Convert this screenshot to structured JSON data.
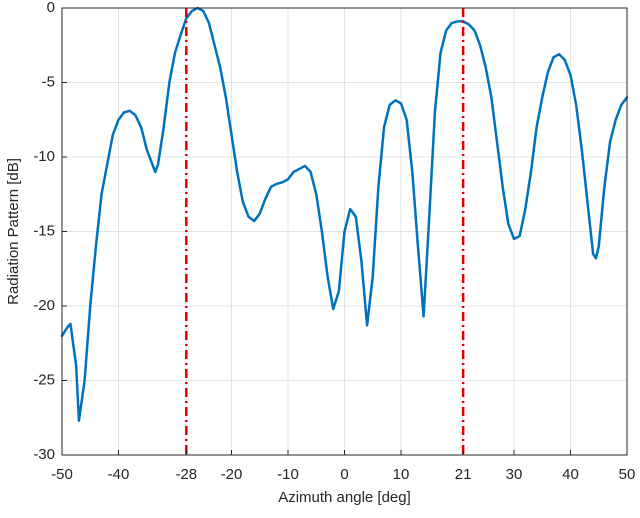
{
  "chart_data": {
    "type": "line",
    "xlabel": "Azimuth angle [deg]",
    "ylabel": "Radiation Pattern [dB]",
    "x": [
      -50,
      -49,
      -48.5,
      -47.5,
      -47,
      -46,
      -45,
      -44,
      -43,
      -42,
      -41,
      -40,
      -39,
      -38,
      -37,
      -36,
      -35,
      -34,
      -33.5,
      -33,
      -32,
      -31,
      -30,
      -29,
      -28,
      -27,
      -26,
      -25,
      -24,
      -23,
      -22,
      -21,
      -20,
      -19,
      -18,
      -17,
      -16,
      -15,
      -14,
      -13,
      -12,
      -11,
      -10,
      -9,
      -8,
      -7,
      -6,
      -5,
      -4,
      -3,
      -2,
      -1,
      0,
      1,
      2,
      3,
      4,
      5,
      6,
      7,
      8,
      9,
      10,
      11,
      12,
      13,
      14,
      15,
      16,
      17,
      18,
      19,
      20,
      21,
      22,
      23,
      24,
      25,
      26,
      27,
      28,
      29,
      30,
      31,
      32,
      33,
      34,
      35,
      36,
      37,
      38,
      39,
      40,
      41,
      42,
      43,
      44,
      44.5,
      45,
      46,
      47,
      48,
      49,
      50
    ],
    "series": [
      {
        "color": "#0072bd",
        "values": [
          -22,
          -21.4,
          -21.2,
          -24,
          -27.7,
          -25,
          -20,
          -16,
          -12.5,
          -10.5,
          -8.5,
          -7.5,
          -7,
          -6.9,
          -7.2,
          -8,
          -9.5,
          -10.5,
          -11,
          -10.5,
          -8,
          -5,
          -3,
          -1.8,
          -0.7,
          -0.2,
          0,
          -0.2,
          -1,
          -2.5,
          -4,
          -6,
          -8.5,
          -11,
          -13,
          -14,
          -14.3,
          -13.8,
          -12.8,
          -12,
          -11.8,
          -11.7,
          -11.5,
          -11,
          -10.8,
          -10.6,
          -11,
          -12.5,
          -15,
          -18,
          -20.2,
          -19,
          -15,
          -13.5,
          -14,
          -17,
          -21.3,
          -18,
          -12,
          -8,
          -6.5,
          -6.2,
          -6.4,
          -7.5,
          -11,
          -16,
          -20.7,
          -14,
          -7,
          -3,
          -1.5,
          -1,
          -0.9,
          -0.9,
          -1.1,
          -1.5,
          -2.5,
          -4,
          -6,
          -9,
          -12,
          -14.5,
          -15.5,
          -15.3,
          -13.5,
          -11,
          -8,
          -6,
          -4.3,
          -3.3,
          -3.1,
          -3.5,
          -4.5,
          -6.5,
          -9.5,
          -13,
          -16.5,
          -16.8,
          -16,
          -12,
          -9,
          -7.5,
          -6.5,
          -6
        ]
      }
    ],
    "markers": [
      -28,
      21
    ],
    "marker_color": "#e00000",
    "xlim": [
      -50,
      50
    ],
    "ylim": [
      -30,
      0
    ],
    "xticks": [
      -50,
      -40,
      -28,
      -20,
      -10,
      0,
      10,
      21,
      30,
      40,
      50
    ],
    "yticks": [
      -30,
      -25,
      -20,
      -15,
      -10,
      -5,
      0
    ],
    "grid": true
  }
}
